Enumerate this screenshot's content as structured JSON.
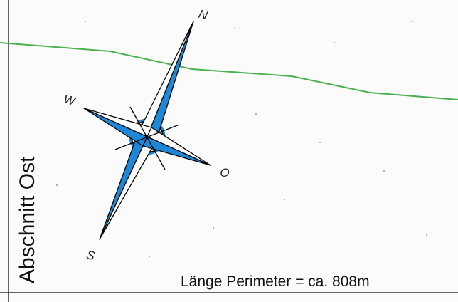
{
  "compass": {
    "north": "N",
    "west": "W",
    "east": "O",
    "south": "S"
  },
  "section_label": "Abschnitt Ost",
  "perimeter_label": "Länge Perimeter = ca. 808m"
}
